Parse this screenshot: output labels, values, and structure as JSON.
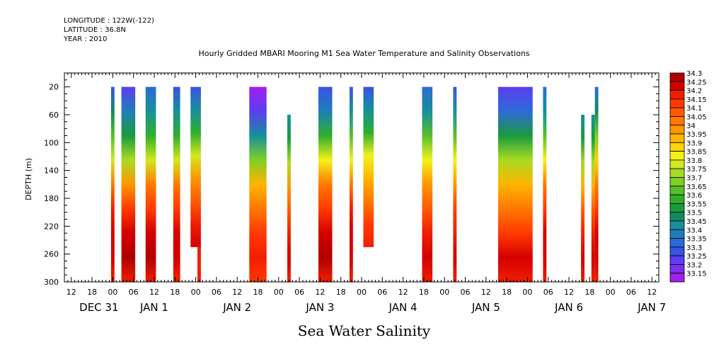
{
  "header": {
    "longitude": "LONGITUDE : 122W(-122)",
    "latitude": "LATITUDE : 36.8N",
    "year": "YEAR : 2010"
  },
  "title": "Hourly Gridded MBARI Mooring M1 Sea Water Temperature and Salinity Observations",
  "bottom_title": "Sea Water Salinity",
  "colors": {
    "palette": [
      "#cc33ff",
      "#a020f0",
      "#7b2ff0",
      "#5a3ef0",
      "#3a52e6",
      "#2d6ad8",
      "#1e7fb8",
      "#16909a",
      "#138a5e",
      "#1a9a3e",
      "#2fae2e",
      "#55bf2a",
      "#7ecf26",
      "#a8dc22",
      "#d2e81e",
      "#f2f219",
      "#ffd20a",
      "#ffb400",
      "#ff9600",
      "#ff7800",
      "#ff5a00",
      "#ff3a00",
      "#f01e00",
      "#d40000",
      "#b00000"
    ],
    "contour_line": "#000000"
  },
  "chart_data": {
    "type": "heatmap",
    "ylabel": "DEPTH (m)",
    "ylim": [
      300,
      0
    ],
    "yticks": [
      20,
      60,
      100,
      140,
      180,
      220,
      260,
      300
    ],
    "x_unit": "hours since DEC 31 00",
    "xlim": [
      -14,
      158
    ],
    "xticks": [
      {
        "hour": -12,
        "label": "12"
      },
      {
        "hour": -6,
        "label": "18"
      },
      {
        "hour": 0,
        "label": "00"
      },
      {
        "hour": 6,
        "label": "06"
      },
      {
        "hour": 12,
        "label": "12"
      },
      {
        "hour": 18,
        "label": "18"
      },
      {
        "hour": 24,
        "label": "00"
      },
      {
        "hour": 30,
        "label": "06"
      },
      {
        "hour": 36,
        "label": "12"
      },
      {
        "hour": 42,
        "label": "18"
      },
      {
        "hour": 48,
        "label": "00"
      },
      {
        "hour": 54,
        "label": "06"
      },
      {
        "hour": 60,
        "label": "12"
      },
      {
        "hour": 66,
        "label": "18"
      },
      {
        "hour": 72,
        "label": "00"
      },
      {
        "hour": 78,
        "label": "06"
      },
      {
        "hour": 84,
        "label": "12"
      },
      {
        "hour": 90,
        "label": "18"
      },
      {
        "hour": 96,
        "label": "00"
      },
      {
        "hour": 102,
        "label": "06"
      },
      {
        "hour": 108,
        "label": "12"
      },
      {
        "hour": 114,
        "label": "18"
      },
      {
        "hour": 120,
        "label": "00"
      },
      {
        "hour": 126,
        "label": "06"
      },
      {
        "hour": 132,
        "label": "12"
      },
      {
        "hour": 138,
        "label": "18"
      },
      {
        "hour": 144,
        "label": "00"
      },
      {
        "hour": 150,
        "label": "06"
      },
      {
        "hour": 156,
        "label": "12"
      }
    ],
    "day_labels": [
      {
        "hour": -4,
        "label": "DEC 31"
      },
      {
        "hour": 12,
        "label": "JAN  1"
      },
      {
        "hour": 36,
        "label": "JAN  2"
      },
      {
        "hour": 60,
        "label": "JAN  3"
      },
      {
        "hour": 84,
        "label": "JAN  4"
      },
      {
        "hour": 108,
        "label": "JAN  5"
      },
      {
        "hour": 132,
        "label": "JAN  6"
      },
      {
        "hour": 156,
        "label": "JAN  7"
      }
    ],
    "legend_levels": [
      "33.15",
      "33.2",
      "33.25",
      "33.3",
      "33.35",
      "33.4",
      "33.45",
      "33.5",
      "33.55",
      "33.6",
      "33.65",
      "33.7",
      "33.75",
      "33.8",
      "33.85",
      "33.9",
      "33.95",
      "34",
      "34.05",
      "34.1",
      "34.15",
      "34.2",
      "34.25",
      "34.3"
    ],
    "legend_placement": "right",
    "blocks": [
      {
        "x": [
          -0.5,
          0.5
        ],
        "top": 20,
        "bottom": 300,
        "profile": [
          33.3,
          33.5,
          33.65,
          33.8,
          34.05,
          34.2,
          34.25,
          34.25,
          34.2
        ]
      },
      {
        "x": [
          2.5,
          6.5
        ],
        "top": 20,
        "bottom": 300,
        "profile": [
          33.25,
          33.4,
          33.55,
          33.75,
          34.0,
          34.15,
          34.25,
          34.3,
          34.2
        ]
      },
      {
        "x": [
          9.5,
          12.5
        ],
        "top": 20,
        "bottom": 300,
        "profile": [
          33.35,
          33.45,
          33.6,
          33.8,
          34.05,
          34.15,
          34.25,
          34.3,
          34.2
        ]
      },
      {
        "x": [
          17.5,
          19.5
        ],
        "top": 20,
        "bottom": 300,
        "profile": [
          33.3,
          33.45,
          33.6,
          33.8,
          34.05,
          34.15,
          34.25,
          34.25,
          34.2
        ]
      },
      {
        "x": [
          22.5,
          25.5
        ],
        "top": 20,
        "bottom": 250,
        "profile": [
          33.3,
          33.45,
          33.6,
          33.8,
          34.0,
          34.1,
          34.2,
          34.25
        ]
      },
      {
        "x": [
          24.5,
          25.5
        ],
        "top": 250,
        "bottom": 300,
        "profile": [
          34.2,
          34.2
        ]
      },
      {
        "x": [
          39.5,
          44.5
        ],
        "top": 20,
        "bottom": 300,
        "profile": [
          33.15,
          33.25,
          33.45,
          33.7,
          33.95,
          34.05,
          34.15,
          34.2,
          34.15
        ]
      },
      {
        "x": [
          50.5,
          51.5
        ],
        "top": 60,
        "bottom": 300,
        "profile": [
          33.45,
          33.55,
          33.75,
          34.0,
          34.1,
          34.2,
          34.25,
          34.2
        ]
      },
      {
        "x": [
          59.5,
          63.5
        ],
        "top": 20,
        "bottom": 300,
        "profile": [
          33.3,
          33.4,
          33.6,
          33.85,
          34.05,
          34.15,
          34.25,
          34.3,
          34.2
        ]
      },
      {
        "x": [
          68.5,
          69.5
        ],
        "top": 20,
        "bottom": 300,
        "profile": [
          33.3,
          33.45,
          33.65,
          33.85,
          34.05,
          34.2,
          34.25,
          34.25,
          34.2
        ]
      },
      {
        "x": [
          72.5,
          75.5
        ],
        "top": 20,
        "bottom": 250,
        "profile": [
          33.3,
          33.45,
          33.6,
          33.85,
          33.95,
          34.05,
          34.15,
          34.2
        ]
      },
      {
        "x": [
          89.5,
          92.5
        ],
        "top": 20,
        "bottom": 300,
        "profile": [
          33.35,
          33.45,
          33.65,
          33.85,
          34.0,
          34.1,
          34.2,
          34.25,
          34.2
        ]
      },
      {
        "x": [
          98.5,
          99.5
        ],
        "top": 20,
        "bottom": 300,
        "profile": [
          33.3,
          33.45,
          33.65,
          33.85,
          34.0,
          34.15,
          34.2,
          34.25,
          34.2
        ]
      },
      {
        "x": [
          111.5,
          121.5
        ],
        "top": 20,
        "bottom": 300,
        "profile": [
          33.25,
          33.35,
          33.55,
          33.75,
          33.95,
          34.05,
          34.15,
          34.25,
          34.2
        ]
      },
      {
        "x": [
          124.5,
          125.5
        ],
        "top": 20,
        "bottom": 300,
        "profile": [
          33.35,
          33.45,
          33.65,
          33.85,
          34.05,
          34.15,
          34.25,
          34.25,
          34.2
        ]
      },
      {
        "x": [
          135.5,
          136.5
        ],
        "top": 60,
        "bottom": 300,
        "profile": [
          33.45,
          33.55,
          33.75,
          33.95,
          34.1,
          34.2,
          34.25,
          34.2
        ]
      },
      {
        "x": [
          138.5,
          139.5
        ],
        "top": 60,
        "bottom": 300,
        "profile": [
          33.45,
          33.55,
          33.75,
          33.95,
          34.1,
          34.2,
          34.25,
          34.2
        ]
      },
      {
        "x": [
          139.5,
          140.5
        ],
        "top": 20,
        "bottom": 300,
        "profile": [
          33.35,
          33.5,
          33.7,
          33.9,
          34.05,
          34.15,
          34.25,
          34.25,
          34.2
        ]
      }
    ]
  }
}
